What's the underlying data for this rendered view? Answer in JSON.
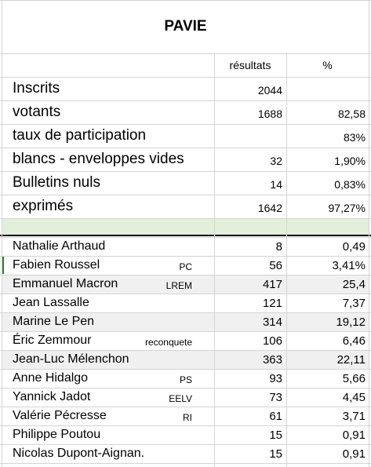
{
  "title": "PAVIE",
  "headers": [
    "résultats",
    "%"
  ],
  "summary": [
    {
      "label": "Inscrits",
      "count": "2044"
    },
    {
      "label": "votants",
      "count": "1688",
      "pct": "82,58"
    },
    {
      "label": "taux de participation",
      "pct": "83%"
    },
    {
      "label": "blancs - enveloppes vides",
      "count": "32",
      "pct": "1,90%"
    },
    {
      "label": "Bulletins nuls",
      "count": "14",
      "pct": "0,83%"
    },
    {
      "label": "exprimés",
      "count": "1642",
      "pct": "97,27%"
    }
  ],
  "candidates": [
    {
      "name": "Nathalie Arthaud",
      "count": "8",
      "pct": "0,49"
    },
    {
      "name": "Fabien Roussel",
      "party": "PC",
      "count": "56",
      "pct": "3,41%"
    },
    {
      "name": "Emmanuel Macron",
      "party": "LREM",
      "count": "417",
      "pct": "25,4"
    },
    {
      "name": "Jean Lassalle",
      "count": "121",
      "pct": "7,37"
    },
    {
      "name": "Marine Le Pen",
      "count": "314",
      "pct": "19,12"
    },
    {
      "name": "Éric Zemmour",
      "party": "reconquete",
      "count": "106",
      "pct": "6,46"
    },
    {
      "name": "Jean-Luc Mélenchon",
      "count": "363",
      "pct": "22,11"
    },
    {
      "name": "Anne Hidalgo",
      "party": "PS",
      "count": "93",
      "pct": "5,66"
    },
    {
      "name": "Yannick Jadot",
      "party": "EELV",
      "count": "73",
      "pct": "4,45"
    },
    {
      "name": "Valérie Pécresse",
      "party": "RI",
      "count": "61",
      "pct": "3,71"
    },
    {
      "name": "Philippe Poutou",
      "count": "15",
      "pct": "0,91"
    },
    {
      "name": "Nicolas Dupont-Aignan.",
      "count": "15",
      "pct": "0,91"
    }
  ]
}
